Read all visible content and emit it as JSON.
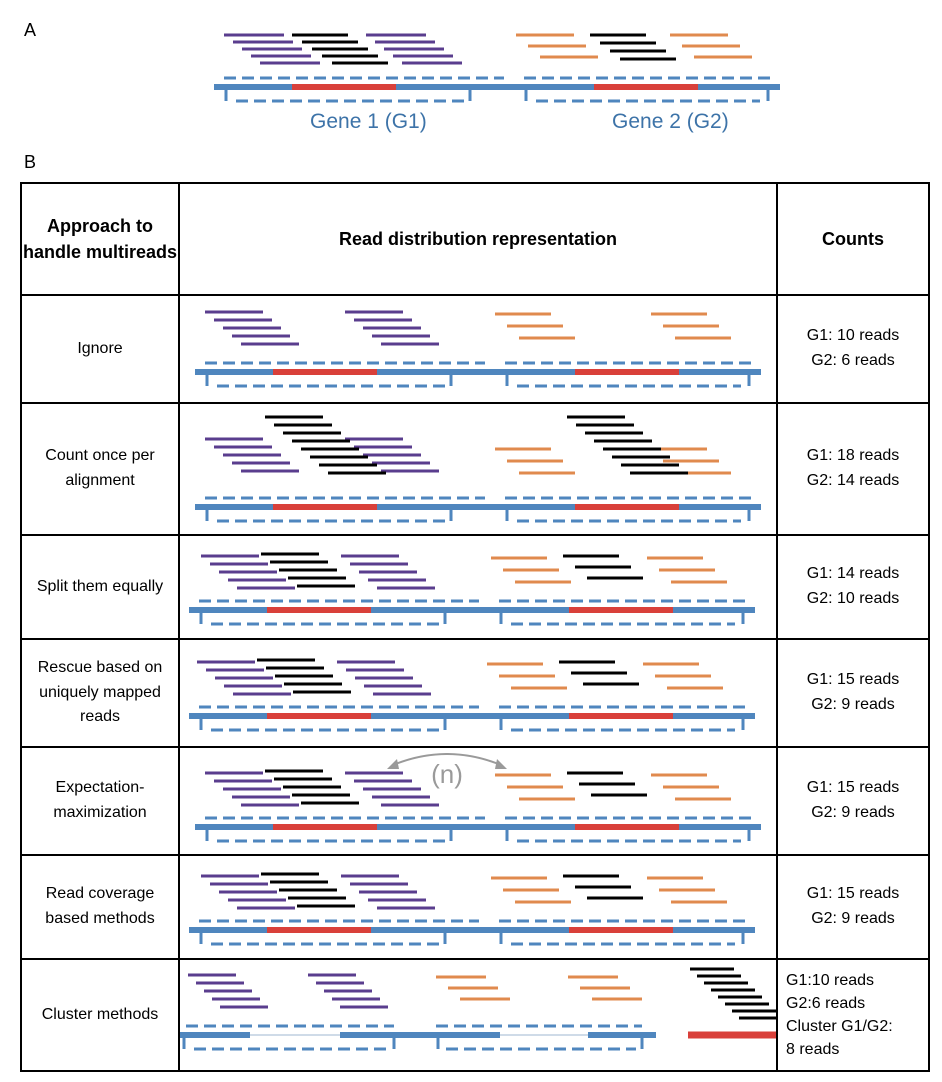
{
  "panel_labels": {
    "a": "A",
    "b": "B"
  },
  "genes": {
    "g1": "Gene 1 (G1)",
    "g2": "Gene 2 (G2)"
  },
  "table": {
    "headers": {
      "approach": "Approach to handle multireads",
      "representation": "Read distribution representation",
      "counts": "Counts"
    },
    "rows": [
      {
        "approach": "Ignore",
        "counts": [
          "G1: 10 reads",
          "G2: 6 reads"
        ]
      },
      {
        "approach": "Count once per alignment",
        "counts": [
          "G1: 18 reads",
          "G2: 14 reads"
        ]
      },
      {
        "approach": "Split them equally",
        "counts": [
          "G1: 14 reads",
          "G2: 10 reads"
        ]
      },
      {
        "approach": "Rescue based on uniquely mapped reads",
        "counts": [
          "G1: 15 reads",
          "G2: 9 reads"
        ]
      },
      {
        "approach": "Expectation-maximization",
        "counts": [
          "G1: 15 reads",
          "G2: 9 reads"
        ],
        "annotation": "(n)"
      },
      {
        "approach": "Read coverage based methods",
        "counts": [
          "G1: 15 reads",
          "G2: 9 reads"
        ]
      },
      {
        "approach": "Cluster methods",
        "counts": [
          "G1:10 reads",
          "G2:6 reads",
          "Cluster G1/G2:",
          "8 reads"
        ]
      }
    ]
  },
  "colors": {
    "gene_line": "#4f86be",
    "exon": "#d9403a",
    "g1_unique_reads": "#5a3d8e",
    "g2_unique_reads": "#e08a4e",
    "multireads": "#000000",
    "arrow": "#9a9a9a"
  },
  "read_counts": {
    "g1_unique": 10,
    "g2_unique": 6,
    "multireads": 8
  }
}
